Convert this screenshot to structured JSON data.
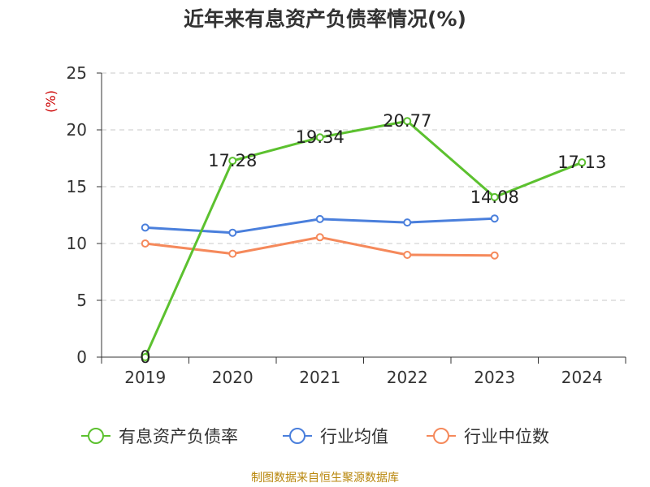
{
  "chart_data": {
    "type": "line",
    "title": "近年来有息资产负债率情况(%)",
    "ylabel": "(%)",
    "categories": [
      "2019",
      "2020",
      "2021",
      "2022",
      "2023",
      "2024"
    ],
    "ylim": [
      0,
      25
    ],
    "yticks": [
      0,
      5,
      10,
      15,
      20,
      25
    ],
    "grid": true,
    "legend_position": "bottom",
    "series": [
      {
        "name": "有息资产负债率",
        "color": "#5cc12f",
        "values": [
          0,
          17.28,
          19.34,
          20.77,
          14.08,
          17.13
        ],
        "data_labels": [
          "0",
          "17.28",
          "19.34",
          "20.77",
          "14.08",
          "17.13"
        ]
      },
      {
        "name": "行业均值",
        "color": "#4a7fdc",
        "values": [
          11.4,
          10.95,
          12.15,
          11.85,
          12.2,
          null
        ]
      },
      {
        "name": "行业中位数",
        "color": "#f5895b",
        "values": [
          10.0,
          9.1,
          10.55,
          9.0,
          8.95,
          null
        ]
      }
    ]
  },
  "footer": {
    "source": "制图数据来自恒生聚源数据库"
  }
}
